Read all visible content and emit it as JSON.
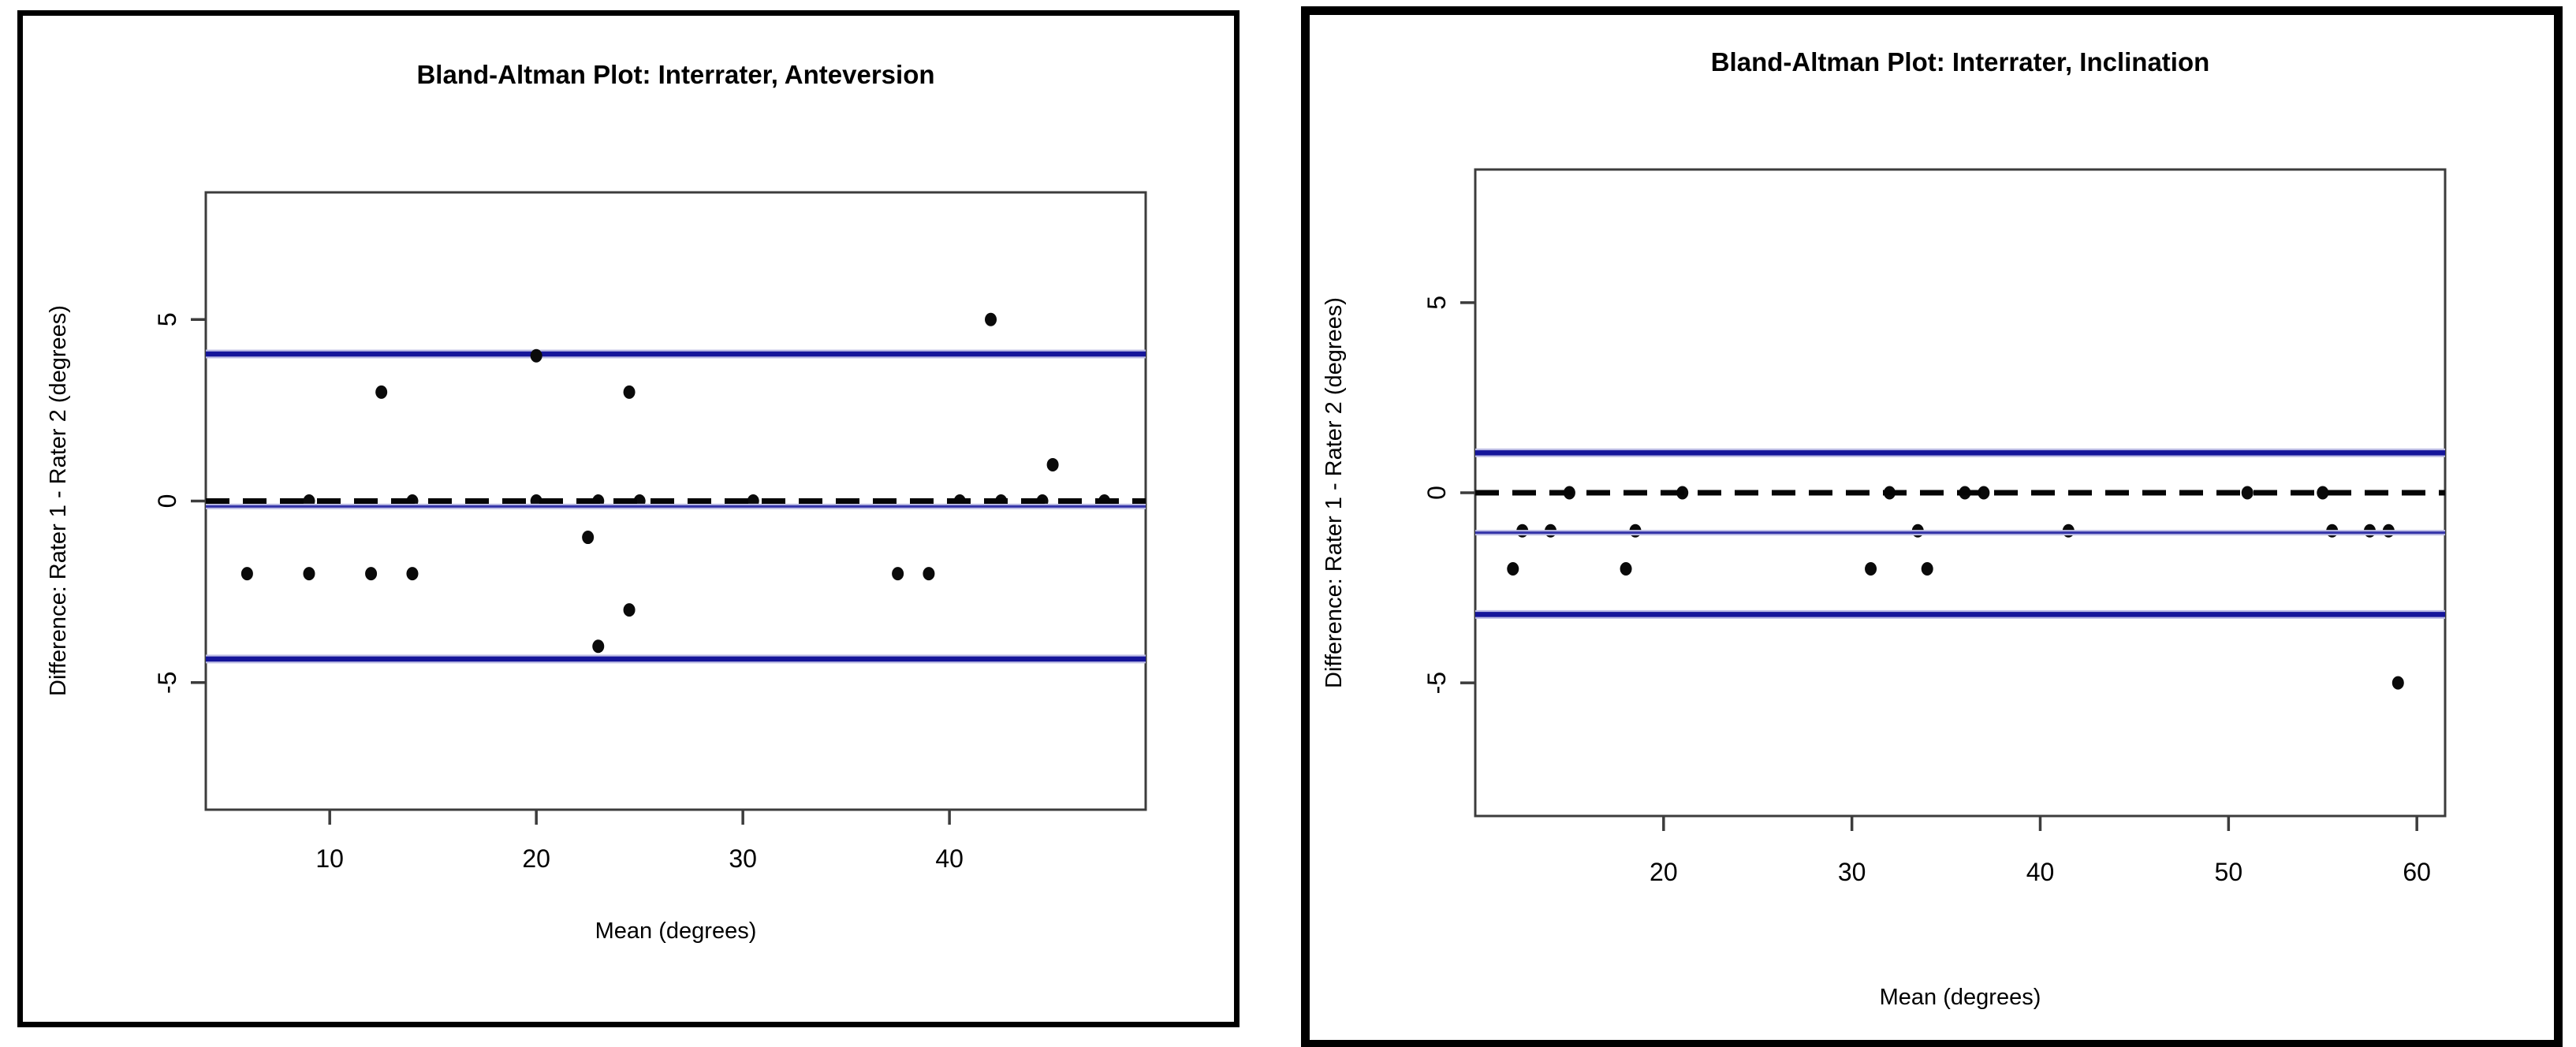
{
  "page": {
    "description": "Two Bland-Altman scatter plots side by side comparing two raters",
    "background_color": "#ffffff"
  },
  "style": {
    "loa_line_color": "#15159a",
    "mean_line_color": "#3434a8",
    "line_halo_color": "#bdbde4",
    "zero_line_color": "#050505",
    "point_color": "#0a0a0a",
    "axis_box_color": "#3c3c3c",
    "figure_border_color": "#000000",
    "text_color": "#000000"
  },
  "chart_data": [
    {
      "type": "scatter",
      "title": "Bland-Altman Plot: Interrater, Anteversion",
      "xlabel": "Mean (degrees)",
      "ylabel": "Difference: Rater 1 - Rater 2 (degrees)",
      "xlim": [
        4,
        49.5
      ],
      "ylim": [
        -8.5,
        8.5
      ],
      "xticks": [
        10,
        20,
        30,
        40
      ],
      "yticks": [
        -5,
        0,
        5
      ],
      "grid": false,
      "legend": "none",
      "zero_line": 0,
      "mean_diff": -0.15,
      "loa_upper": 4.05,
      "loa_lower": -4.35,
      "points": [
        [
          6,
          -2
        ],
        [
          9,
          0
        ],
        [
          9,
          -2
        ],
        [
          12,
          -2
        ],
        [
          12.5,
          3
        ],
        [
          14,
          0
        ],
        [
          14,
          -2
        ],
        [
          20,
          4
        ],
        [
          20,
          0
        ],
        [
          22.5,
          -1
        ],
        [
          23,
          0
        ],
        [
          23,
          -4
        ],
        [
          24.5,
          3
        ],
        [
          24.5,
          -3
        ],
        [
          25,
          0
        ],
        [
          30.5,
          0
        ],
        [
          37.5,
          -2
        ],
        [
          39,
          -2
        ],
        [
          40.5,
          0
        ],
        [
          42,
          5
        ],
        [
          42.5,
          0
        ],
        [
          44.5,
          0
        ],
        [
          45,
          1
        ],
        [
          47.5,
          0
        ]
      ]
    },
    {
      "type": "scatter",
      "title": "Bland-Altman Plot: Interrater, Inclination",
      "xlabel": "Mean (degrees)",
      "ylabel": "Difference: Rater 1 - Rater 2 (degrees)",
      "xlim": [
        10,
        61.5
      ],
      "ylim": [
        -8.5,
        8.5
      ],
      "xticks": [
        20,
        30,
        40,
        50,
        60
      ],
      "yticks": [
        -5,
        0,
        5
      ],
      "grid": false,
      "legend": "none",
      "zero_line": 0,
      "mean_diff": -1.05,
      "loa_upper": 1.05,
      "loa_lower": -3.2,
      "points": [
        [
          12,
          -2
        ],
        [
          12.5,
          -1
        ],
        [
          14,
          -1
        ],
        [
          15,
          0
        ],
        [
          18,
          -2
        ],
        [
          18.5,
          -1
        ],
        [
          21,
          0
        ],
        [
          31,
          -2
        ],
        [
          32,
          0
        ],
        [
          33.5,
          -1
        ],
        [
          34,
          -2
        ],
        [
          36,
          0
        ],
        [
          37,
          0
        ],
        [
          41.5,
          -1
        ],
        [
          51,
          0
        ],
        [
          55,
          0
        ],
        [
          55.5,
          -1
        ],
        [
          57.5,
          -1
        ],
        [
          58.5,
          -1
        ],
        [
          59,
          -5
        ]
      ]
    }
  ]
}
